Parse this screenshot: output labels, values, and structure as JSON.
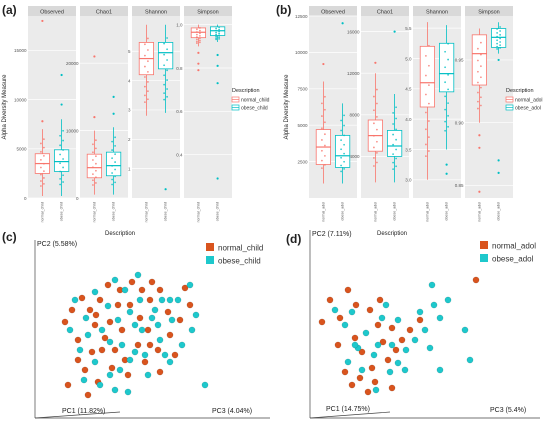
{
  "colors": {
    "normal": "#f8766d",
    "obese": "#00bfc4",
    "pcoa_normal": "#d9541e",
    "pcoa_obese": "#1ec8cc",
    "panel_bg": "#ebebeb",
    "strip_bg": "#d9d9d9",
    "grid": "#ffffff"
  },
  "panels": {
    "a": {
      "label": "(a)"
    },
    "b": {
      "label": "(b)"
    },
    "c": {
      "label": "(c)"
    },
    "d": {
      "label": "(d)"
    }
  },
  "chart_data": [
    {
      "id": "a",
      "type": "box",
      "ylabel": "Alpha Diversity Measure",
      "xlabel": "Description",
      "legend": {
        "title": "Description",
        "entries": [
          "normal_child",
          "obese_child"
        ],
        "placement": "right"
      },
      "x_ticks": [
        "normal_child",
        "obese_child"
      ],
      "facets": [
        {
          "name": "Observed",
          "ylim": [
            0,
            18500
          ],
          "yticks": [
            "0",
            "5000",
            "10000",
            "15000"
          ],
          "ytick_values": [
            0,
            5000,
            10000,
            15000
          ],
          "boxes": [
            {
              "group": "normal_child",
              "min": 200,
              "q1": 2500,
              "median": 3500,
              "q3": 4500,
              "max": 7000,
              "outliers": [
                7800,
                18000
              ]
            },
            {
              "group": "obese_child",
              "min": 200,
              "q1": 2700,
              "median": 3700,
              "q3": 4900,
              "max": 8000,
              "outliers": [
                9500,
                12500
              ]
            }
          ]
        },
        {
          "name": "Chao1",
          "ylim": [
            0,
            27000
          ],
          "yticks": [
            "0",
            "10000",
            "20000"
          ],
          "ytick_values": [
            0,
            10000,
            20000
          ],
          "boxes": [
            {
              "group": "normal_child",
              "min": 500,
              "q1": 3000,
              "median": 4500,
              "q3": 6500,
              "max": 10000,
              "outliers": [
                12000,
                21000
              ]
            },
            {
              "group": "obese_child",
              "min": 500,
              "q1": 3300,
              "median": 4800,
              "q3": 6800,
              "max": 10500,
              "outliers": [
                12500,
                15000
              ]
            }
          ]
        },
        {
          "name": "Shannon",
          "ylim": [
            0,
            6.2
          ],
          "yticks": [
            "1",
            "2",
            "3",
            "4",
            "5"
          ],
          "ytick_values": [
            1,
            2,
            3,
            4,
            5
          ],
          "boxes": [
            {
              "group": "normal_child",
              "min": 2.8,
              "q1": 4.2,
              "median": 4.75,
              "q3": 5.3,
              "max": 5.9,
              "outliers": []
            },
            {
              "group": "obese_child",
              "min": 2.9,
              "q1": 4.4,
              "median": 4.95,
              "q3": 5.3,
              "max": 5.9,
              "outliers": [
                0.3
              ]
            }
          ]
        },
        {
          "name": "Simpson",
          "ylim": [
            0.2,
            1.04
          ],
          "yticks": [
            "0.4",
            "0.6",
            "0.8",
            "1.0"
          ],
          "ytick_values": [
            0.4,
            0.6,
            0.8,
            1.0
          ],
          "boxes": [
            {
              "group": "normal_child",
              "min": 0.9,
              "q1": 0.94,
              "median": 0.965,
              "q3": 0.985,
              "max": 1.0,
              "outliers": [
                0.87,
                0.82,
                0.79
              ]
            },
            {
              "group": "obese_child",
              "min": 0.92,
              "q1": 0.95,
              "median": 0.972,
              "q3": 0.99,
              "max": 1.0,
              "outliers": [
                0.86,
                0.81,
                0.73,
                0.29
              ]
            }
          ]
        }
      ]
    },
    {
      "id": "b",
      "type": "box",
      "ylabel": "Alpha Diversity Measure",
      "xlabel": "Description",
      "legend": {
        "title": "Description",
        "entries": [
          "normal_adol",
          "obese_adol"
        ],
        "placement": "right"
      },
      "x_ticks": [
        "normal_adol",
        "obese_adol"
      ],
      "facets": [
        {
          "name": "Observed",
          "ylim": [
            0,
            12500
          ],
          "yticks": [
            "2500",
            "5000",
            "7500",
            "10000",
            "12500"
          ],
          "ytick_values": [
            2500,
            5000,
            7500,
            10000,
            12500
          ],
          "boxes": [
            {
              "group": "normal_adol",
              "min": 1000,
              "q1": 2300,
              "median": 3500,
              "q3": 4700,
              "max": 8000,
              "outliers": [
                9200
              ]
            },
            {
              "group": "obese_adol",
              "min": 1000,
              "q1": 2100,
              "median": 2900,
              "q3": 4300,
              "max": 6500,
              "outliers": [
                12000
              ]
            }
          ]
        },
        {
          "name": "Chao1",
          "ylim": [
            0,
            17500
          ],
          "yticks": [
            "4000",
            "8000",
            "12000",
            "16000"
          ],
          "ytick_values": [
            4000,
            8000,
            12000,
            16000
          ],
          "boxes": [
            {
              "group": "normal_adol",
              "min": 1500,
              "q1": 4500,
              "median": 6000,
              "q3": 7500,
              "max": 12000,
              "outliers": [
                13000
              ]
            },
            {
              "group": "obese_adol",
              "min": 1500,
              "q1": 4000,
              "median": 5000,
              "q3": 6500,
              "max": 10000,
              "outliers": [
                16000
              ]
            }
          ]
        },
        {
          "name": "Shannon",
          "ylim": [
            2.7,
            5.7
          ],
          "yticks": [
            "3.0",
            "3.5",
            "4.0",
            "4.5",
            "5.0",
            "5.5"
          ],
          "ytick_values": [
            3.0,
            3.5,
            4.0,
            4.5,
            5.0,
            5.5
          ],
          "boxes": [
            {
              "group": "normal_adol",
              "min": 3.0,
              "q1": 4.2,
              "median": 4.6,
              "q3": 5.2,
              "max": 5.6,
              "outliers": []
            },
            {
              "group": "obese_adol",
              "min": 3.5,
              "q1": 4.45,
              "median": 4.75,
              "q3": 5.25,
              "max": 5.55,
              "outliers": [
                3.25,
                3.1
              ]
            }
          ]
        },
        {
          "name": "Simpson",
          "ylim": [
            0.84,
            0.985
          ],
          "yticks": [
            "0.85",
            "0.90",
            "0.95"
          ],
          "ytick_values": [
            0.85,
            0.9,
            0.95
          ],
          "boxes": [
            {
              "group": "normal_adol",
              "min": 0.9,
              "q1": 0.93,
              "median": 0.955,
              "q3": 0.97,
              "max": 0.975,
              "outliers": [
                0.89,
                0.88,
                0.845
              ]
            },
            {
              "group": "obese_adol",
              "min": 0.955,
              "q1": 0.96,
              "median": 0.968,
              "q3": 0.975,
              "max": 0.98,
              "outliers": [
                0.95,
                0.87,
                0.86
              ]
            }
          ]
        }
      ]
    },
    {
      "id": "c",
      "type": "scatter",
      "axes": {
        "pc1": "PC1 (11.82%)",
        "pc2": "PC2 (5.58%)",
        "pc3": "PC3 (4.04%)"
      },
      "legend": {
        "entries": [
          "normal_child",
          "obese_child"
        ],
        "placement": "top-right"
      },
      "series": [
        {
          "name": "normal_child",
          "points": [
            [
              72,
              310
            ],
            [
              82,
              298
            ],
            [
              90,
              310
            ],
            [
              100,
              300
            ],
            [
              110,
              322
            ],
            [
              78,
              340
            ],
            [
              92,
              352
            ],
            [
              105,
              338
            ],
            [
              120,
              290
            ],
            [
              130,
              305
            ],
            [
              140,
              318
            ],
            [
              150,
              300
            ],
            [
              160,
              290
            ],
            [
              168,
              312
            ],
            [
              85,
              370
            ],
            [
              98,
              382
            ],
            [
              112,
              368
            ],
            [
              125,
              360
            ],
            [
              138,
              345
            ],
            [
              148,
              330
            ],
            [
              158,
              350
            ],
            [
              170,
              335
            ],
            [
              180,
              320
            ],
            [
              190,
              305
            ],
            [
              95,
              325
            ],
            [
              115,
              350
            ],
            [
              128,
              375
            ],
            [
              145,
              362
            ],
            [
              160,
              372
            ],
            [
              175,
              355
            ],
            [
              68,
              385
            ],
            [
              88,
              395
            ],
            [
              102,
              350
            ],
            [
              122,
              330
            ],
            [
              142,
              290
            ],
            [
              152,
              282
            ],
            [
              65,
              322
            ],
            [
              108,
              285
            ],
            [
              132,
              282
            ],
            [
              185,
              288
            ],
            [
              118,
              305
            ],
            [
              96,
              315
            ],
            [
              150,
              345
            ],
            [
              78,
              360
            ]
          ]
        },
        {
          "name": "obese_child",
          "points": [
            [
              75,
              300
            ],
            [
              86,
              318
            ],
            [
              95,
              292
            ],
            [
              108,
              306
            ],
            [
              118,
              320
            ],
            [
              130,
              312
            ],
            [
              140,
              300
            ],
            [
              152,
              318
            ],
            [
              162,
              300
            ],
            [
              172,
              320
            ],
            [
              80,
              350
            ],
            [
              95,
              362
            ],
            [
              110,
              342
            ],
            [
              120,
              370
            ],
            [
              135,
              352
            ],
            [
              148,
              375
            ],
            [
              160,
              340
            ],
            [
              170,
              362
            ],
            [
              182,
              345
            ],
            [
              192,
              330
            ],
            [
              100,
              385
            ],
            [
              115,
              390
            ],
            [
              130,
              360
            ],
            [
              142,
              330
            ],
            [
              155,
              310
            ],
            [
              165,
              355
            ],
            [
              178,
              300
            ],
            [
              190,
              285
            ],
            [
              125,
              290
            ],
            [
              138,
              275
            ],
            [
              115,
              280
            ],
            [
              102,
              330
            ],
            [
              205,
              385
            ],
            [
              88,
              335
            ],
            [
              70,
              330
            ],
            [
              158,
              325
            ],
            [
              145,
              355
            ],
            [
              122,
              345
            ],
            [
              170,
              300
            ],
            [
              110,
              375
            ],
            [
              128,
              392
            ],
            [
              84,
              380
            ],
            [
              135,
              325
            ],
            [
              196,
              315
            ]
          ]
        }
      ]
    },
    {
      "id": "d",
      "type": "scatter",
      "axes": {
        "pc1": "PC1 (14.75%)",
        "pc2": "PC2 (7.11%)",
        "pc3": "PC3 (5.4%)"
      },
      "legend": {
        "entries": [
          "normal_adol",
          "obese_adol"
        ],
        "placement": "top-right"
      },
      "series": [
        {
          "name": "normal_adol",
          "points": [
            [
              330,
              300
            ],
            [
              340,
              318
            ],
            [
              348,
              290
            ],
            [
              355,
              338
            ],
            [
              362,
              352
            ],
            [
              370,
              310
            ],
            [
              378,
              325
            ],
            [
              383,
              342
            ],
            [
              388,
              360
            ],
            [
              392,
              328
            ],
            [
              345,
              372
            ],
            [
              352,
              385
            ],
            [
              360,
              378
            ],
            [
              368,
              392
            ],
            [
              375,
              382
            ],
            [
              380,
              300
            ],
            [
              396,
              350
            ],
            [
              402,
              340
            ],
            [
              410,
              330
            ],
            [
              420,
              320
            ],
            [
              338,
              345
            ],
            [
              356,
              305
            ],
            [
              372,
              368
            ],
            [
              392,
              388
            ],
            [
              476,
              280
            ],
            [
              322,
              322
            ]
          ]
        },
        {
          "name": "obese_adol",
          "points": [
            [
              335,
              310
            ],
            [
              345,
              325
            ],
            [
              352,
              312
            ],
            [
              358,
              348
            ],
            [
              366,
              333
            ],
            [
              374,
              355
            ],
            [
              382,
              318
            ],
            [
              390,
              372
            ],
            [
              398,
              363
            ],
            [
              406,
              350
            ],
            [
              415,
              340
            ],
            [
              425,
              330
            ],
            [
              434,
              305
            ],
            [
              440,
              318
            ],
            [
              348,
              362
            ],
            [
              362,
              370
            ],
            [
              376,
              390
            ],
            [
              392,
              345
            ],
            [
              398,
              320
            ],
            [
              405,
              370
            ],
            [
              430,
              348
            ],
            [
              378,
              345
            ],
            [
              440,
              370
            ],
            [
              355,
              345
            ],
            [
              465,
              330
            ],
            [
              432,
              285
            ],
            [
              386,
              305
            ],
            [
              420,
              312
            ],
            [
              448,
              300
            ],
            [
              470,
              360
            ]
          ]
        }
      ]
    }
  ]
}
